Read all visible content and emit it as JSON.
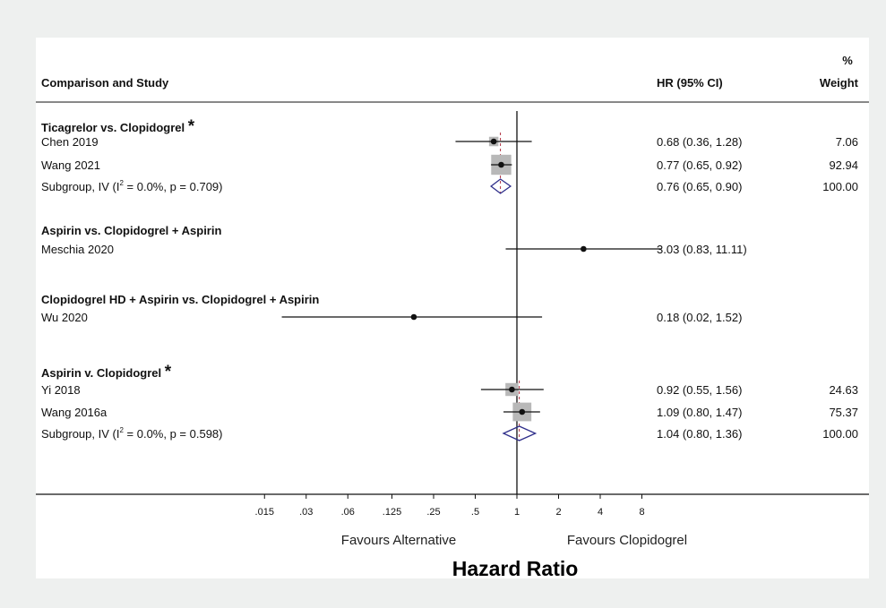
{
  "chart_data": {
    "type": "forest",
    "header": {
      "study_label": "Comparison and Study",
      "hr_label": "HR (95% CI)",
      "weight_label_line1": "%",
      "weight_label_line2": "Weight"
    },
    "x_axis": {
      "scale": "log",
      "ticks": [
        0.015,
        0.03,
        0.06,
        0.125,
        0.25,
        0.5,
        1,
        2,
        4,
        8
      ],
      "tick_labels": [
        ".015",
        ".03",
        ".06",
        ".125",
        ".25",
        ".5",
        "1",
        "2",
        "4",
        "8"
      ],
      "label": "Hazard Ratio",
      "favours_left": "Favours Alternative",
      "favours_right": "Favours Clopidogrel",
      "reference_line": 1
    },
    "groups": [
      {
        "name": "Ticagrelor vs. Clopidogrel",
        "star": "*",
        "pooled_hr": 0.76,
        "studies": [
          {
            "label": "Chen 2019",
            "hr": 0.68,
            "lo": 0.36,
            "hi": 1.28,
            "ci_text": "0.68 (0.36, 1.28)",
            "weight": "7.06",
            "w": 7.06
          },
          {
            "label": "Wang 2021",
            "hr": 0.77,
            "lo": 0.65,
            "hi": 0.92,
            "ci_text": "0.77 (0.65, 0.92)",
            "weight": "92.94",
            "w": 92.94
          }
        ],
        "subgroup": {
          "label_pre": "Subgroup, IV (I",
          "label_sup": "2",
          "label_post": " = 0.0%, p = 0.709)",
          "hr": 0.76,
          "lo": 0.65,
          "hi": 0.9,
          "ci_text": "0.76 (0.65, 0.90)",
          "weight": "100.00"
        }
      },
      {
        "name": "Aspirin vs. Clopidogrel + Aspirin",
        "studies": [
          {
            "label": "Meschia 2020",
            "hr": 3.03,
            "lo": 0.83,
            "hi": 11.11,
            "ci_text": "3.03 (0.83, 11.11)",
            "weight": ""
          }
        ]
      },
      {
        "name": "Clopidogrel HD + Aspirin vs. Clopidogrel + Aspirin",
        "studies": [
          {
            "label": "Wu 2020",
            "hr": 0.18,
            "lo": 0.02,
            "hi": 1.52,
            "ci_text": "0.18 (0.02, 1.52)",
            "weight": ""
          }
        ]
      },
      {
        "name": "Aspirin v. Clopidogrel",
        "star": "*",
        "pooled_hr": 1.04,
        "studies": [
          {
            "label": "Yi 2018",
            "hr": 0.92,
            "lo": 0.55,
            "hi": 1.56,
            "ci_text": "0.92 (0.55, 1.56)",
            "weight": "24.63",
            "w": 24.63
          },
          {
            "label": "Wang 2016a",
            "hr": 1.09,
            "lo": 0.8,
            "hi": 1.47,
            "ci_text": "1.09 (0.80, 1.47)",
            "weight": "75.37",
            "w": 75.37
          }
        ],
        "subgroup": {
          "label_pre": "Subgroup, IV (I",
          "label_sup": "2",
          "label_post": " = 0.0%, p = 0.598)",
          "hr": 1.04,
          "lo": 0.8,
          "hi": 1.36,
          "ci_text": "1.04 (0.80, 1.36)",
          "weight": "100.00"
        }
      }
    ],
    "colors": {
      "line": "#111111",
      "point": "#111111",
      "weight_box": "#b8b8b8",
      "diamond": "#2e2e8a",
      "pooled_line": "#b03040"
    }
  }
}
